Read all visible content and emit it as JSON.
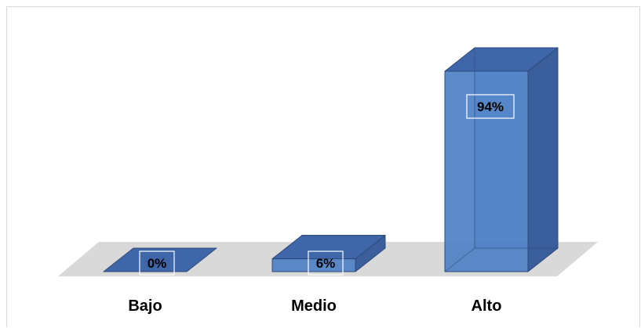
{
  "chart_data": {
    "type": "bar",
    "style": "3d-column",
    "categories": [
      "Bajo",
      "Medio",
      "Alto"
    ],
    "values": [
      0,
      6,
      94
    ],
    "data_labels": [
      "0%",
      "6%",
      "94%"
    ],
    "ylim": [
      0,
      100
    ],
    "title": "",
    "xlabel": "",
    "ylabel": "",
    "grid": false,
    "legend": "none",
    "colors": {
      "bar_front": "#4f81c6",
      "bar_top": "#3f66a8",
      "bar_side": "#3a5f9c",
      "bar_edge": "#2e4a7a",
      "floor": "#d9d9d9",
      "label_box_border": "#ffffff"
    }
  }
}
